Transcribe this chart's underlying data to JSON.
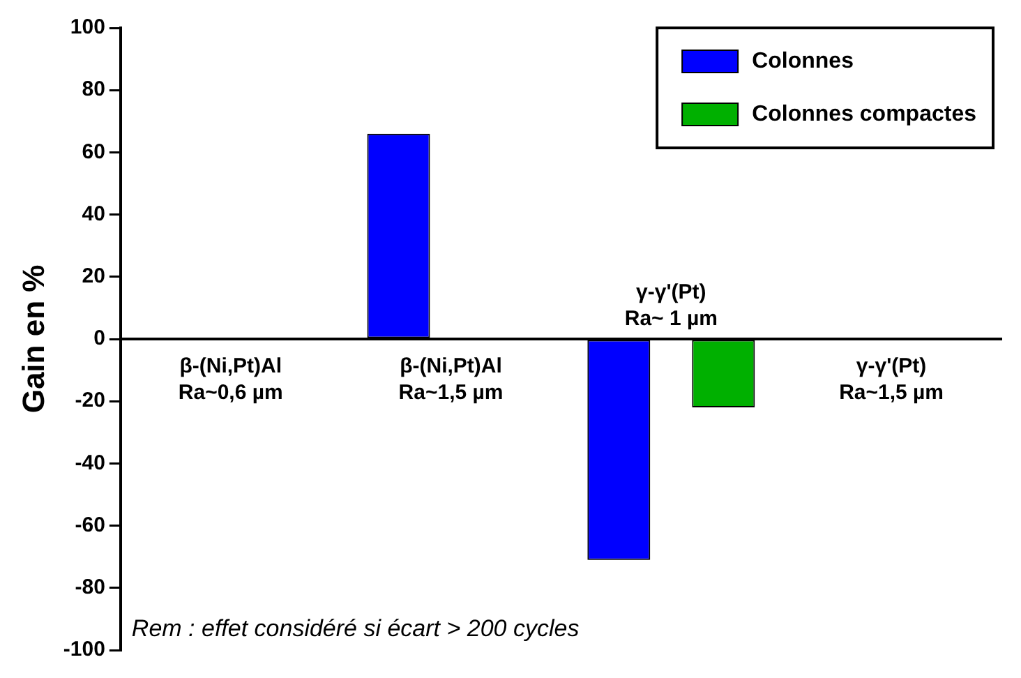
{
  "chart_data": {
    "type": "bar",
    "ylabel": "Gain en %",
    "categories": [
      "β-(Ni,Pt)Al\nRa~0,6 µm",
      "β-(Ni,Pt)Al\nRa~1,5 µm",
      "γ-γ'(Pt)\nRa~ 1 µm",
      "γ-γ'(Pt)\nRa~1,5 µm"
    ],
    "series": [
      {
        "name": "Colonnes",
        "color": "#0000ff",
        "values": [
          null,
          66,
          -71,
          null
        ]
      },
      {
        "name": "Colonnes compactes",
        "color": "#00b000",
        "values": [
          null,
          null,
          -22,
          null
        ]
      }
    ],
    "ylim": [
      -100,
      100
    ],
    "yticks": [
      -100,
      -80,
      -60,
      -40,
      -20,
      0,
      20,
      40,
      60,
      80,
      100
    ],
    "grid": false,
    "legend": "top right",
    "annotations": [
      "Rem : effet considéré si écart > 200 cycles"
    ]
  }
}
